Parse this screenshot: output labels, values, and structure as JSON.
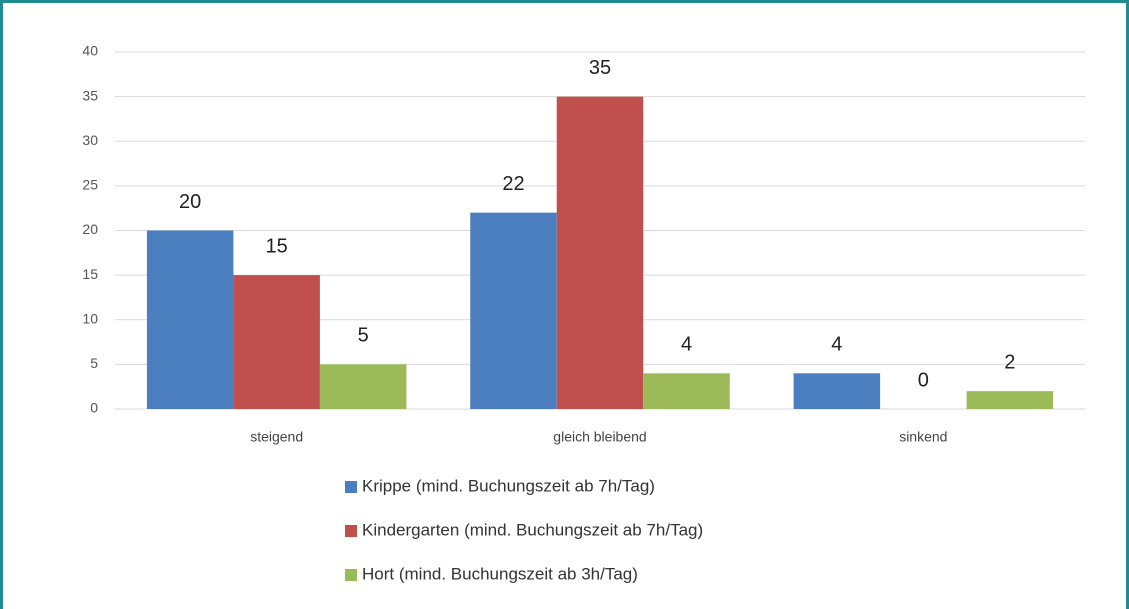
{
  "chart_data": {
    "type": "bar",
    "categories": [
      "steigend",
      "gleich bleibend",
      "sinkend"
    ],
    "series": [
      {
        "name": "Krippe (mind. Buchungszeit ab 7h/Tag)",
        "color": "#4a7ebf",
        "values": [
          20,
          22,
          4
        ]
      },
      {
        "name": "Kindergarten (mind. Buchungszeit ab 7h/Tag)",
        "color": "#c0504d",
        "values": [
          15,
          35,
          0
        ]
      },
      {
        "name": "Hort (mind. Buchungszeit ab 3h/Tag)",
        "color": "#9bbb59",
        "values": [
          5,
          4,
          2
        ]
      }
    ],
    "ylim": [
      0,
      40
    ],
    "yticks": [
      0,
      5,
      10,
      15,
      20,
      25,
      30,
      35,
      40
    ],
    "grid": true,
    "legend": "bottom"
  }
}
